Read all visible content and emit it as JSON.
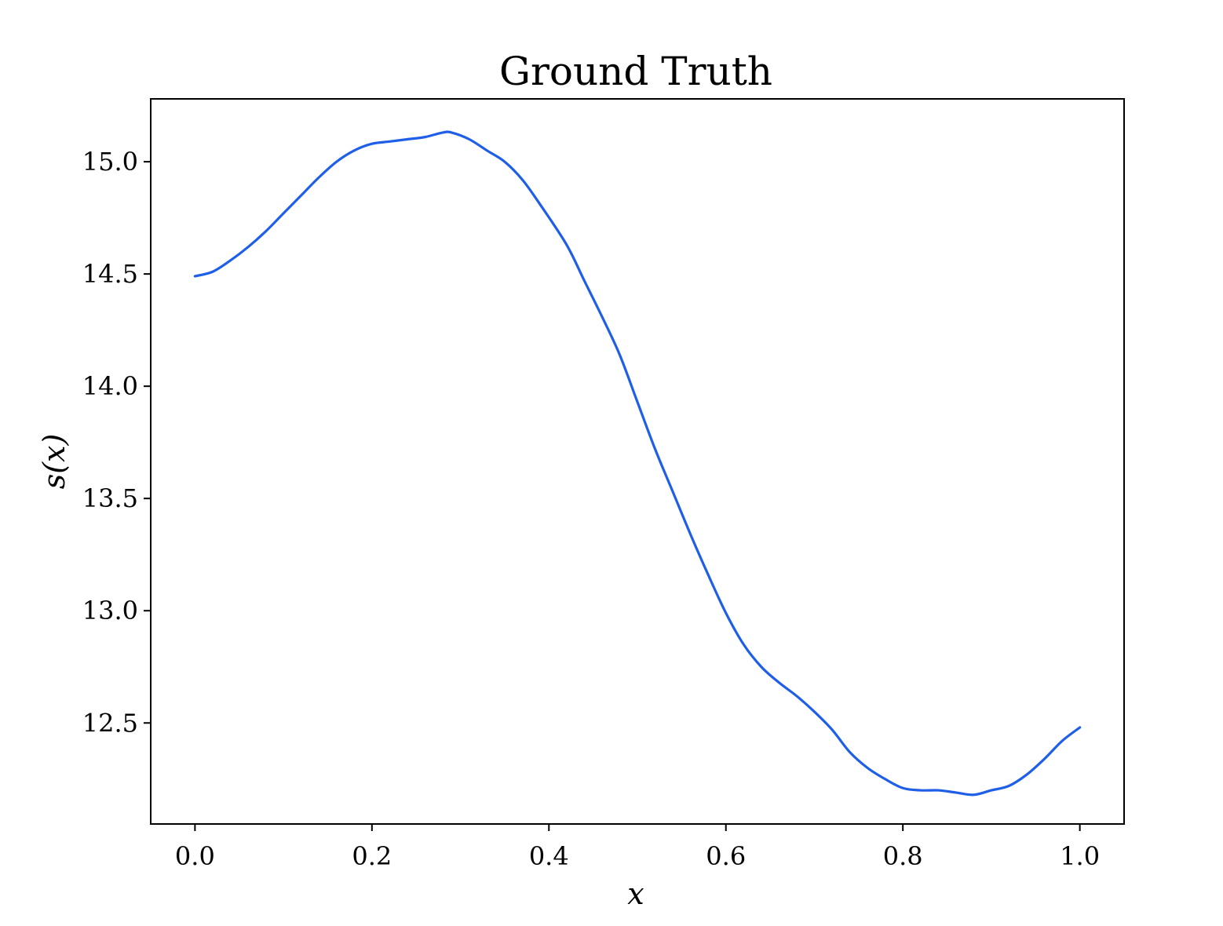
{
  "chart_data": {
    "type": "line",
    "title": "Ground Truth",
    "xlabel": "x",
    "ylabel": "s(x)",
    "xlim": [
      -0.05,
      1.05
    ],
    "ylim": [
      12.05,
      15.28
    ],
    "xticks": [
      0.0,
      0.2,
      0.4,
      0.6,
      0.8,
      1.0
    ],
    "xtick_labels": [
      "0.0",
      "0.2",
      "0.4",
      "0.6",
      "0.8",
      "1.0"
    ],
    "yticks": [
      12.5,
      13.0,
      13.5,
      14.0,
      14.5,
      15.0
    ],
    "ytick_labels": [
      "12.5",
      "13.0",
      "13.5",
      "14.0",
      "14.5",
      "15.0"
    ],
    "grid": false,
    "color": "#1f5fe8",
    "series": [
      {
        "x": [
          0.0,
          0.02,
          0.04,
          0.06,
          0.08,
          0.1,
          0.12,
          0.14,
          0.16,
          0.18,
          0.2,
          0.22,
          0.24,
          0.26,
          0.28,
          0.29,
          0.31,
          0.33,
          0.35,
          0.37,
          0.39,
          0.42,
          0.44,
          0.46,
          0.48,
          0.5,
          0.52,
          0.54,
          0.56,
          0.58,
          0.6,
          0.62,
          0.64,
          0.66,
          0.68,
          0.7,
          0.72,
          0.74,
          0.76,
          0.78,
          0.8,
          0.82,
          0.84,
          0.86,
          0.88,
          0.9,
          0.92,
          0.94,
          0.96,
          0.98,
          1.0
        ],
        "y": [
          14.49,
          14.51,
          14.56,
          14.62,
          14.69,
          14.77,
          14.85,
          14.93,
          15.0,
          15.05,
          15.08,
          15.09,
          15.1,
          15.11,
          15.13,
          15.13,
          15.1,
          15.05,
          15.0,
          14.92,
          14.81,
          14.63,
          14.47,
          14.31,
          14.14,
          13.93,
          13.72,
          13.53,
          13.34,
          13.16,
          12.99,
          12.85,
          12.75,
          12.68,
          12.62,
          12.55,
          12.47,
          12.37,
          12.3,
          12.25,
          12.21,
          12.2,
          12.2,
          12.19,
          12.18,
          12.2,
          12.22,
          12.27,
          12.34,
          12.42,
          12.48
        ]
      }
    ]
  }
}
